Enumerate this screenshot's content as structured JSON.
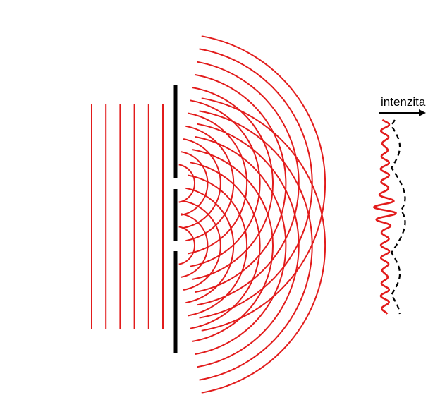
{
  "diagram": {
    "intensity_label": "intenzita",
    "colors": {
      "wave": "#e21b1b",
      "barrier": "#000000",
      "envelope": "#000000",
      "background": "#ffffff"
    },
    "slit_count": 2,
    "incoming_wavefront_count": 6
  }
}
